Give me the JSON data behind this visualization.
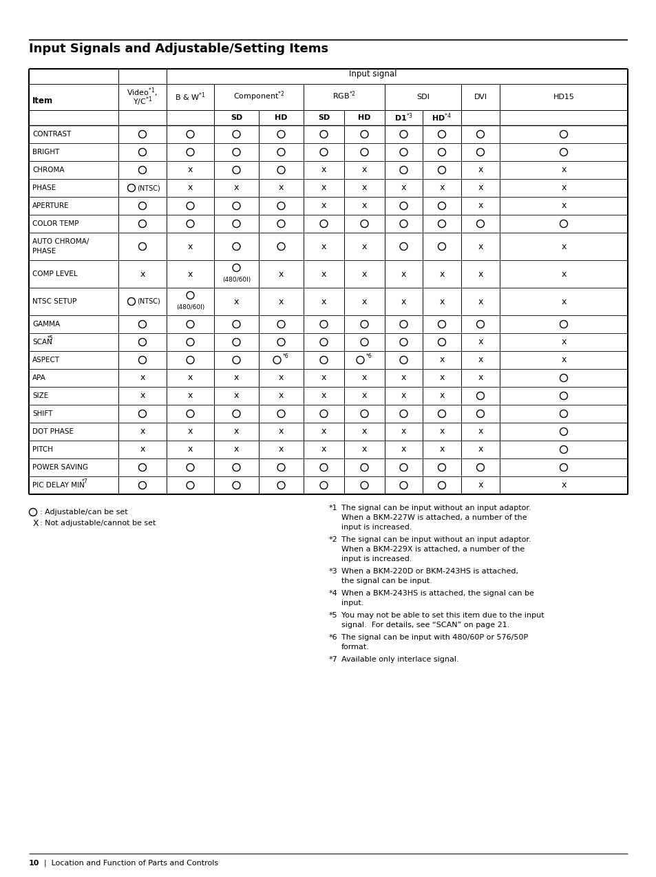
{
  "title": "Input Signals and Adjustable/Setting Items",
  "page_label": "10",
  "page_label2": "Location and Function of Parts and Controls",
  "rows": [
    {
      "item": "CONTRAST",
      "item2": "",
      "vals": [
        "O",
        "O",
        "O",
        "O",
        "O",
        "O",
        "O",
        "O",
        "O",
        "O"
      ]
    },
    {
      "item": "BRIGHT",
      "item2": "",
      "vals": [
        "O",
        "O",
        "O",
        "O",
        "O",
        "O",
        "O",
        "O",
        "O",
        "O"
      ]
    },
    {
      "item": "CHROMA",
      "item2": "",
      "vals": [
        "O",
        "x",
        "O",
        "O",
        "x",
        "x",
        "O",
        "O",
        "x",
        "x"
      ]
    },
    {
      "item": "PHASE",
      "item2": "",
      "vals": [
        "O_NTSC",
        "x",
        "x",
        "x",
        "x",
        "x",
        "x",
        "x",
        "x",
        "x"
      ]
    },
    {
      "item": "APERTURE",
      "item2": "",
      "vals": [
        "O",
        "O",
        "O",
        "O",
        "x",
        "x",
        "O",
        "O",
        "x",
        "x"
      ]
    },
    {
      "item": "COLOR TEMP",
      "item2": "",
      "vals": [
        "O",
        "O",
        "O",
        "O",
        "O",
        "O",
        "O",
        "O",
        "O",
        "O"
      ]
    },
    {
      "item": "AUTO CHROMA/",
      "item2": "PHASE",
      "vals": [
        "O",
        "x",
        "O",
        "O",
        "x",
        "x",
        "O",
        "O",
        "x",
        "x"
      ]
    },
    {
      "item": "COMP LEVEL",
      "item2": "",
      "vals": [
        "x",
        "x",
        "O_480",
        "x",
        "x",
        "x",
        "x",
        "x",
        "x",
        "x"
      ]
    },
    {
      "item": "NTSC SETUP",
      "item2": "",
      "vals": [
        "O_NTSC",
        "O_480",
        "x",
        "x",
        "x",
        "x",
        "x",
        "x",
        "x",
        "x"
      ]
    },
    {
      "item": "GAMMA",
      "item2": "",
      "vals": [
        "O",
        "O",
        "O",
        "O",
        "O",
        "O",
        "O",
        "O",
        "O",
        "O"
      ]
    },
    {
      "item": "SCAN*5",
      "item2": "",
      "vals": [
        "O",
        "O",
        "O",
        "O",
        "O",
        "O",
        "O",
        "O",
        "x",
        "x"
      ]
    },
    {
      "item": "ASPECT",
      "item2": "",
      "vals": [
        "O",
        "O",
        "O",
        "O_s6",
        "O",
        "O_s6",
        "O",
        "x",
        "x",
        "x"
      ]
    },
    {
      "item": "APA",
      "item2": "",
      "vals": [
        "x",
        "x",
        "x",
        "x",
        "x",
        "x",
        "x",
        "x",
        "x",
        "O"
      ]
    },
    {
      "item": "SIZE",
      "item2": "",
      "vals": [
        "x",
        "x",
        "x",
        "x",
        "x",
        "x",
        "x",
        "x",
        "O",
        "O"
      ]
    },
    {
      "item": "SHIFT",
      "item2": "",
      "vals": [
        "O",
        "O",
        "O",
        "O",
        "O",
        "O",
        "O",
        "O",
        "O",
        "O"
      ]
    },
    {
      "item": "DOT PHASE",
      "item2": "",
      "vals": [
        "x",
        "x",
        "x",
        "x",
        "x",
        "x",
        "x",
        "x",
        "x",
        "O"
      ]
    },
    {
      "item": "PITCH",
      "item2": "",
      "vals": [
        "x",
        "x",
        "x",
        "x",
        "x",
        "x",
        "x",
        "x",
        "x",
        "O"
      ]
    },
    {
      "item": "POWER SAVING",
      "item2": "",
      "vals": [
        "O",
        "O",
        "O",
        "O",
        "O",
        "O",
        "O",
        "O",
        "O",
        "O"
      ]
    },
    {
      "item": "PIC DELAY MIN*7",
      "item2": "",
      "vals": [
        "O",
        "O",
        "O",
        "O",
        "O",
        "O",
        "O",
        "O",
        "x",
        "x"
      ]
    }
  ],
  "footnotes_left": [
    "O : Adjustable/can be set",
    "X : Not adjustable/cannot be set"
  ],
  "footnotes_right": [
    [
      "*1",
      "The signal can be input without an input adaptor.",
      "When a BKM-227W is attached, a number of the",
      "input is increased."
    ],
    [
      "*2",
      "The signal can be input without an input adaptor.",
      "When a BKM-229X is attached, a number of the",
      "input is increased."
    ],
    [
      "*3",
      "When a BKM-220D or BKM-243HS is attached,",
      "the signal can be input.",
      ""
    ],
    [
      "*4",
      "When a BKM-243HS is attached, the signal can be",
      "input.",
      ""
    ],
    [
      "*5",
      "You may not be able to set this item due to the input",
      "signal.  For details, see “SCAN” on page 21.",
      ""
    ],
    [
      "*6",
      "The signal can be input with 480/60P or 576/50P",
      "format.",
      ""
    ],
    [
      "*7",
      "Available only interlace signal.",
      "",
      ""
    ]
  ]
}
